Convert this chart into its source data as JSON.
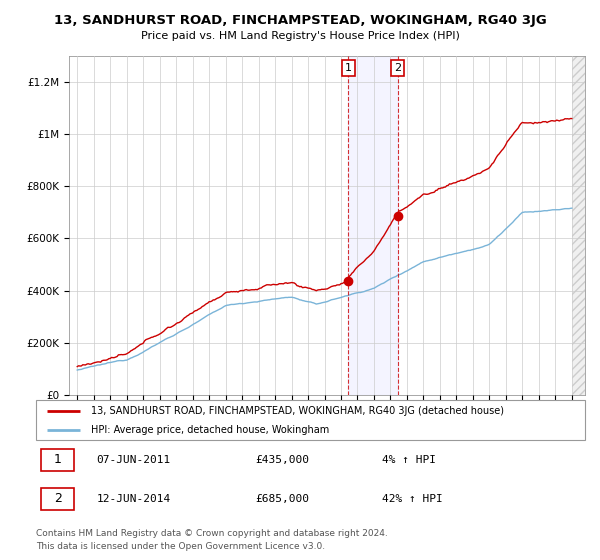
{
  "title": "13, SANDHURST ROAD, FINCHAMPSTEAD, WOKINGHAM, RG40 3JG",
  "subtitle": "Price paid vs. HM Land Registry's House Price Index (HPI)",
  "ylim": [
    0,
    1300000
  ],
  "yticks": [
    0,
    200000,
    400000,
    600000,
    800000,
    1000000,
    1200000
  ],
  "ytick_labels": [
    "£0",
    "£200K",
    "£400K",
    "£600K",
    "£800K",
    "£1M",
    "£1.2M"
  ],
  "x_start_year": 1995,
  "x_end_year": 2025,
  "hpi_color": "#7ab4d8",
  "price_color": "#cc0000",
  "sale1_year": 2011.44,
  "sale1_price": 435000,
  "sale2_year": 2014.44,
  "sale2_price": 685000,
  "legend_line1": "13, SANDHURST ROAD, FINCHAMPSTEAD, WOKINGHAM, RG40 3JG (detached house)",
  "legend_line2": "HPI: Average price, detached house, Wokingham",
  "annotation1_date": "07-JUN-2011",
  "annotation1_price": "£435,000",
  "annotation1_pct": "4% ↑ HPI",
  "annotation2_date": "12-JUN-2014",
  "annotation2_price": "£685,000",
  "annotation2_pct": "42% ↑ HPI",
  "footer": "Contains HM Land Registry data © Crown copyright and database right 2024.\nThis data is licensed under the Open Government Licence v3.0.",
  "grid_color": "#cccccc",
  "hatch_color": "#dddddd"
}
